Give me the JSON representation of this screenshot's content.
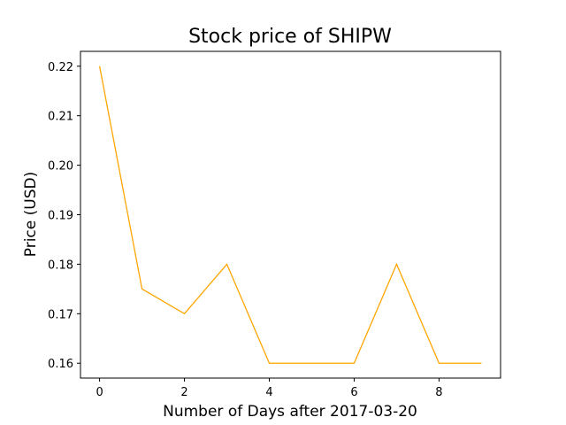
{
  "chart_data": {
    "type": "line",
    "title": "Stock price of SHIPW",
    "xlabel": "Number of Days after 2017-03-20",
    "ylabel": "Price (USD)",
    "xlim": [
      -0.45,
      9.45
    ],
    "ylim": [
      0.157,
      0.223
    ],
    "xticks": [
      0,
      2,
      4,
      6,
      8
    ],
    "xtick_labels": [
      "0",
      "2",
      "4",
      "6",
      "8"
    ],
    "yticks": [
      0.16,
      0.17,
      0.18,
      0.19,
      0.2,
      0.21,
      0.22
    ],
    "ytick_labels": [
      "0.16",
      "0.17",
      "0.18",
      "0.19",
      "0.20",
      "0.21",
      "0.22"
    ],
    "grid": false,
    "series": [
      {
        "color": "#ffa500",
        "x": [
          0,
          1,
          2,
          3,
          4,
          5,
          6,
          7,
          8,
          9
        ],
        "y": [
          0.22,
          0.175,
          0.17,
          0.18,
          0.16,
          0.16,
          0.16,
          0.18,
          0.16,
          0.16
        ]
      }
    ]
  }
}
